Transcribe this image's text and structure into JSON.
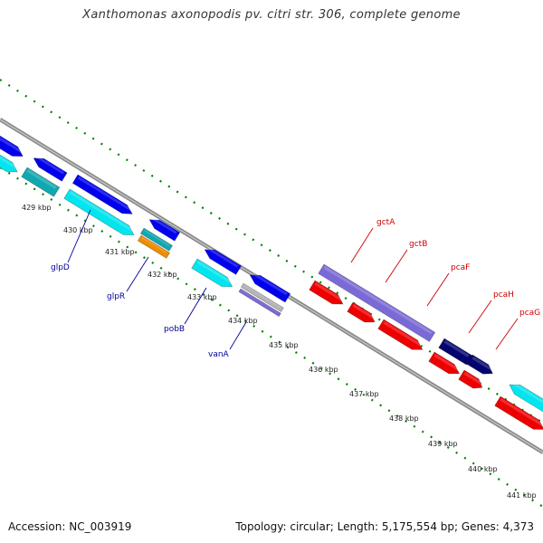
{
  "title": "Xanthomonas axonopodis pv. citri str. 306, complete genome",
  "footer": {
    "accession": "Accession: NC_003919",
    "topology": "Topology: circular; Length: 5,175,554 bp; Genes: 4,373"
  },
  "kbp_labels": [
    "429 kbp",
    "430 kbp",
    "431 kbp",
    "432 kbp",
    "433 kbp",
    "434 kbp",
    "435 kbp",
    "436 kbp",
    "437 kbp",
    "438 kbp",
    "439 kbp",
    "440 kbp",
    "441 kbp"
  ],
  "genes_upper": [
    {
      "name": "gctA",
      "color": "#cc0000"
    },
    {
      "name": "gctB",
      "color": "#cc0000"
    },
    {
      "name": "pcaF",
      "color": "#cc0000"
    },
    {
      "name": "pcaH",
      "color": "#cc0000"
    },
    {
      "name": "pcaG",
      "color": "#cc0000"
    }
  ],
  "genes_lower": [
    {
      "name": "glpD",
      "color": "#000099"
    },
    {
      "name": "glpR",
      "color": "#000099"
    },
    {
      "name": "pobB",
      "color": "#000099"
    },
    {
      "name": "vanA",
      "color": "#000099"
    }
  ],
  "colors": {
    "blue": "#0000ee",
    "cyan": "#00e5ee",
    "teal": "#10a8b0",
    "purple": "#7a6ad6",
    "navy": "#050570",
    "red": "#ee0000",
    "orange": "#ee8c00",
    "gray": "#b5b5b5",
    "backbone": "#888888",
    "ticks": "#008000"
  }
}
